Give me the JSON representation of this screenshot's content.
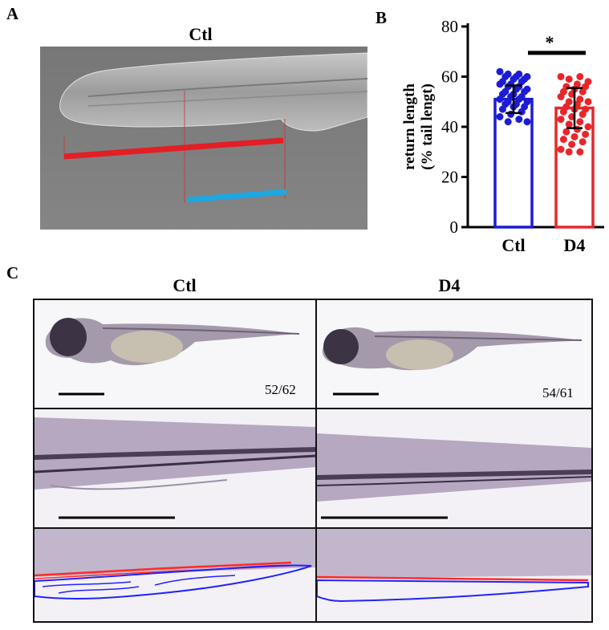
{
  "panels": {
    "a": {
      "letter": "A",
      "title": "Ctl"
    },
    "b": {
      "letter": "B"
    },
    "c": {
      "letter": "C",
      "columns": [
        "Ctl",
        "D4"
      ],
      "counts": [
        "52/62",
        "54/61"
      ]
    }
  },
  "colors": {
    "ctl": "#1c1cd4",
    "d4": "#e8262a",
    "measure_red": "#e31e24",
    "measure_blue": "#1ea7e1",
    "outline_red": "#ff2a2a",
    "outline_blue": "#2222ff"
  },
  "chart_data": {
    "type": "bar",
    "ylabel": "return length (% tail lengt)",
    "ylim": [
      0,
      80
    ],
    "yticks": [
      0,
      20,
      40,
      60,
      80
    ],
    "categories": [
      "Ctl",
      "D4"
    ],
    "values": [
      51,
      47.5
    ],
    "errors": [
      5.5,
      8
    ],
    "significance": "*",
    "series": [
      {
        "name": "Ctl",
        "points": [
          62,
          61,
          61,
          60,
          60,
          60,
          59,
          59,
          58,
          58,
          57,
          57,
          56,
          56,
          55,
          55,
          54,
          54,
          53,
          53,
          52,
          52,
          51,
          51,
          50,
          50,
          49,
          49,
          48,
          48,
          47,
          46,
          45,
          44,
          43,
          42,
          42
        ]
      },
      {
        "name": "D4",
        "points": [
          60,
          60,
          59,
          58,
          57,
          56,
          56,
          55,
          54,
          54,
          53,
          52,
          51,
          50,
          50,
          49,
          48,
          47,
          47,
          46,
          45,
          44,
          43,
          42,
          41,
          40,
          39,
          38,
          37,
          36,
          35,
          34,
          33,
          31,
          30,
          30
        ]
      }
    ]
  }
}
